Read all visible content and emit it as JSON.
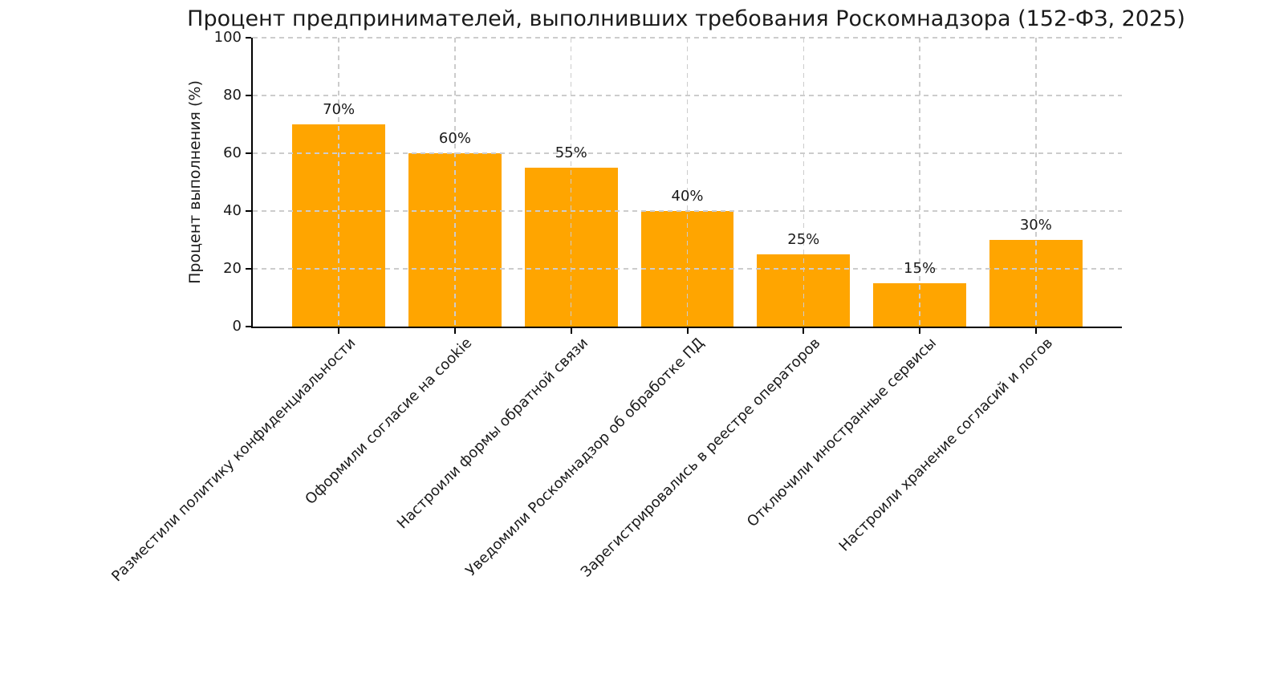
{
  "chart_data": {
    "type": "bar",
    "title": "Процент предпринимателей, выполнивших требования Роскомнадзора (152-ФЗ, 2025)",
    "ylabel": "Процент выполнения (%)",
    "xlabel": "",
    "categories": [
      "Разместили политику конфиденциальности",
      "Оформили согласие на cookie",
      "Настроили формы обратной связи",
      "Уведомили Роскомнадзор об обработке ПД",
      "Зарегистрировались в реестре операторов",
      "Отключили иностранные сервисы",
      "Настроили хранение согласий и логов"
    ],
    "values": [
      70,
      60,
      55,
      40,
      25,
      15,
      30
    ],
    "value_labels": [
      "70%",
      "60%",
      "55%",
      "40%",
      "25%",
      "15%",
      "30%"
    ],
    "ylim": [
      0,
      100
    ],
    "yticks": [
      0,
      20,
      40,
      60,
      80,
      100
    ],
    "grid": true,
    "grid_style": "dashed",
    "grid_axes": "both",
    "legend": null,
    "colors": {
      "bar": "#FFA500",
      "grid": "#cccccc",
      "text": "#1a1a1a",
      "spine": "#000000",
      "background": "#ffffff"
    }
  }
}
